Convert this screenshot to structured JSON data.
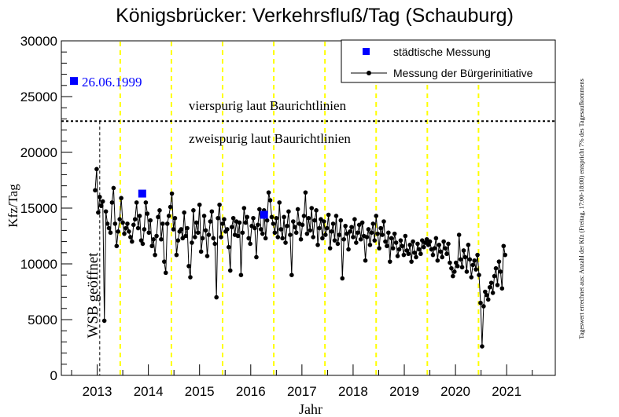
{
  "chart_data": {
    "type": "line",
    "title": "Königsbrücker: Verkehrsfluß/Tag (Schauburg)",
    "xlabel": "Jahr",
    "ylabel": "Kfz/Tag",
    "side_note": "Tageswert errechnet aus: Anzahl der Kfz (Freitag, 17:00-18:00) entspricht 7% des Tagesaufkommens",
    "xlim": [
      2012.3,
      2021.95
    ],
    "ylim": [
      0,
      30000
    ],
    "x_ticks": [
      2013,
      2014,
      2015,
      2016,
      2017,
      2018,
      2019,
      2020,
      2021
    ],
    "x_tick_labels": [
      "2013",
      "2014",
      "2015",
      "2016",
      "2017",
      "2018",
      "2019",
      "2020",
      "2021"
    ],
    "y_ticks": [
      0,
      5000,
      10000,
      15000,
      20000,
      25000,
      30000
    ],
    "y_tick_labels": [
      "0",
      "5000",
      "10000",
      "15000",
      "20000",
      "25000",
      "30000"
    ],
    "grid": false,
    "legend_position": "top-right",
    "legend": [
      {
        "label": "städtische Messung",
        "marker": "square",
        "color": "#0000ff"
      },
      {
        "label": "Messung der Bürgerinitiative",
        "marker": "dot-line",
        "color": "#000000"
      }
    ],
    "reference_line": {
      "y": 22800,
      "style": "dotted",
      "label_above": "vierspurig laut Baurichtlinien",
      "label_below": "zweispurig laut Baurichtlinien"
    },
    "opening_marker": {
      "x": 2013.05,
      "label": "WSB geöffnet"
    },
    "yellow_markers": [
      2013.45,
      2014.45,
      2015.45,
      2016.45,
      2017.45,
      2018.45,
      2019.45,
      2020.45
    ],
    "annotation": {
      "label": "26.06.1999",
      "value": 26400
    },
    "colors": {
      "accent": "#0000ff",
      "series": "#000000",
      "vertical_markers": "#ffff00"
    },
    "series": [
      {
        "name": "städtische Messung",
        "points": [
          [
            2013.88,
            16300
          ],
          [
            2016.26,
            14400
          ]
        ]
      },
      {
        "name": "Messung der Bürgerinitiative",
        "x": [
          2012.96,
          2012.99,
          2013.02,
          2013.05,
          2013.08,
          2013.11,
          2013.14,
          2013.17,
          2013.2,
          2013.23,
          2013.26,
          2013.29,
          2013.32,
          2013.35,
          2013.38,
          2013.41,
          2013.44,
          2013.47,
          2013.5,
          2013.53,
          2013.56,
          2013.59,
          2013.62,
          2013.65,
          2013.68,
          2013.71,
          2013.74,
          2013.77,
          2013.8,
          2013.83,
          2013.86,
          2013.89,
          2013.92,
          2013.95,
          2013.98,
          2014.01,
          2014.04,
          2014.07,
          2014.1,
          2014.13,
          2014.16,
          2014.19,
          2014.22,
          2014.25,
          2014.28,
          2014.31,
          2014.34,
          2014.37,
          2014.4,
          2014.43,
          2014.46,
          2014.49,
          2014.52,
          2014.55,
          2014.58,
          2014.61,
          2014.64,
          2014.67,
          2014.7,
          2014.73,
          2014.76,
          2014.79,
          2014.82,
          2014.85,
          2014.88,
          2014.91,
          2014.94,
          2014.97,
          2015.0,
          2015.03,
          2015.06,
          2015.09,
          2015.12,
          2015.15,
          2015.18,
          2015.21,
          2015.24,
          2015.27,
          2015.3,
          2015.33,
          2015.36,
          2015.39,
          2015.42,
          2015.45,
          2015.48,
          2015.51,
          2015.54,
          2015.57,
          2015.6,
          2015.63,
          2015.66,
          2015.69,
          2015.72,
          2015.75,
          2015.78,
          2015.81,
          2015.84,
          2015.87,
          2015.9,
          2015.93,
          2015.96,
          2015.99,
          2016.02,
          2016.05,
          2016.08,
          2016.11,
          2016.14,
          2016.17,
          2016.2,
          2016.23,
          2016.26,
          2016.29,
          2016.32,
          2016.35,
          2016.38,
          2016.41,
          2016.44,
          2016.47,
          2016.5,
          2016.53,
          2016.56,
          2016.59,
          2016.62,
          2016.65,
          2016.68,
          2016.71,
          2016.74,
          2016.77,
          2016.8,
          2016.83,
          2016.86,
          2016.89,
          2016.92,
          2016.95,
          2016.98,
          2017.01,
          2017.04,
          2017.07,
          2017.1,
          2017.13,
          2017.16,
          2017.19,
          2017.22,
          2017.25,
          2017.28,
          2017.31,
          2017.34,
          2017.37,
          2017.4,
          2017.43,
          2017.46,
          2017.49,
          2017.52,
          2017.55,
          2017.58,
          2017.61,
          2017.64,
          2017.67,
          2017.7,
          2017.73,
          2017.76,
          2017.79,
          2017.82,
          2017.85,
          2017.88,
          2017.91,
          2017.94,
          2017.97,
          2018.0,
          2018.03,
          2018.06,
          2018.09,
          2018.12,
          2018.15,
          2018.18,
          2018.21,
          2018.24,
          2018.27,
          2018.3,
          2018.33,
          2018.36,
          2018.39,
          2018.42,
          2018.45,
          2018.48,
          2018.51,
          2018.54,
          2018.57,
          2018.6,
          2018.63,
          2018.66,
          2018.69,
          2018.72,
          2018.75,
          2018.78,
          2018.81,
          2018.84,
          2018.87,
          2018.9,
          2018.93,
          2018.96,
          2018.99,
          2019.02,
          2019.05,
          2019.08,
          2019.11,
          2019.14,
          2019.17,
          2019.2,
          2019.23,
          2019.26,
          2019.29,
          2019.32,
          2019.35,
          2019.38,
          2019.41,
          2019.44,
          2019.47,
          2019.5,
          2019.53,
          2019.56,
          2019.59,
          2019.62,
          2019.65,
          2019.68,
          2019.71,
          2019.74,
          2019.77,
          2019.8,
          2019.83,
          2019.86,
          2019.89,
          2019.92,
          2019.95,
          2019.98,
          2020.01,
          2020.04,
          2020.07,
          2020.1,
          2020.13,
          2020.16,
          2020.19,
          2020.22,
          2020.25,
          2020.28,
          2020.31,
          2020.34,
          2020.37,
          2020.4,
          2020.43,
          2020.46,
          2020.49,
          2020.52,
          2020.55,
          2020.58,
          2020.61,
          2020.64,
          2020.67,
          2020.7,
          2020.73,
          2020.76,
          2020.79,
          2020.82,
          2020.85,
          2020.88,
          2020.91,
          2020.94,
          2020.97
        ],
        "y": [
          16600,
          18500,
          14600,
          16000,
          15200,
          15600,
          4900,
          14700,
          13600,
          13200,
          12800,
          15500,
          16800,
          13600,
          11600,
          12900,
          14000,
          15900,
          13700,
          12700,
          13200,
          13600,
          12900,
          12400,
          12000,
          13500,
          14000,
          15500,
          13200,
          14300,
          12100,
          11800,
          13100,
          15500,
          14500,
          12800,
          13900,
          11600,
          12200,
          10800,
          12500,
          14200,
          14800,
          12200,
          13600,
          10200,
          9200,
          13600,
          14300,
          15100,
          16300,
          13100,
          14100,
          10800,
          12100,
          12900,
          13100,
          12300,
          14600,
          12500,
          13200,
          9800,
          8800,
          11900,
          14800,
          12400,
          13700,
          12800,
          15300,
          11100,
          12300,
          14300,
          13000,
          10700,
          12600,
          13800,
          14700,
          12300,
          11800,
          7000,
          14100,
          15300,
          12400,
          13600,
          14000,
          12900,
          13100,
          11500,
          9400,
          13300,
          14100,
          12600,
          13800,
          12500,
          13700,
          9000,
          12800,
          15000,
          13700,
          14200,
          12300,
          11800,
          13400,
          14100,
          13200,
          10600,
          13500,
          14900,
          13100,
          12700,
          14800,
          12300,
          13900,
          16400,
          15700,
          14200,
          13600,
          12800,
          14100,
          12400,
          15500,
          13100,
          12300,
          14200,
          11900,
          13400,
          14700,
          12600,
          9000,
          13800,
          13300,
          12800,
          14900,
          13600,
          12200,
          13500,
          14300,
          16400,
          12700,
          14100,
          13000,
          15000,
          12400,
          13900,
          14800,
          11700,
          13200,
          14000,
          12300,
          13800,
          12600,
          13200,
          14400,
          11400,
          12900,
          13600,
          12100,
          14300,
          11800,
          12600,
          13900,
          8700,
          12200,
          13400,
          12700,
          11300,
          12900,
          13300,
          12400,
          14000,
          11900,
          12800,
          13500,
          12200,
          13700,
          12500,
          10300,
          12400,
          13100,
          11700,
          12800,
          13600,
          12100,
          14300,
          12700,
          11400,
          13200,
          12600,
          13800,
          12000,
          11600,
          12800,
          10200,
          12300,
          11400,
          12700,
          11900,
          10700,
          11300,
          12100,
          11600,
          10800,
          12500,
          11200,
          10900,
          11700,
          10200,
          12000,
          11000,
          10600,
          11800,
          11300,
          10900,
          12100,
          11500,
          11900,
          12200,
          11700,
          12000,
          11300,
          10800,
          11400,
          12300,
          10300,
          11700,
          11100,
          10600,
          12000,
          11400,
          10900,
          11800,
          10100,
          9600,
          8900,
          9300,
          10100,
          9800,
          12600,
          10400,
          9700,
          11200,
          10600,
          9300,
          11700,
          10400,
          8800,
          9900,
          10300,
          9500,
          10800,
          9000,
          6500,
          2600,
          6200,
          7500,
          7200,
          6800,
          7900,
          8300,
          7400,
          8900,
          9600,
          8100,
          10200,
          9300,
          7800,
          11600,
          10800
        ]
      }
    ]
  }
}
